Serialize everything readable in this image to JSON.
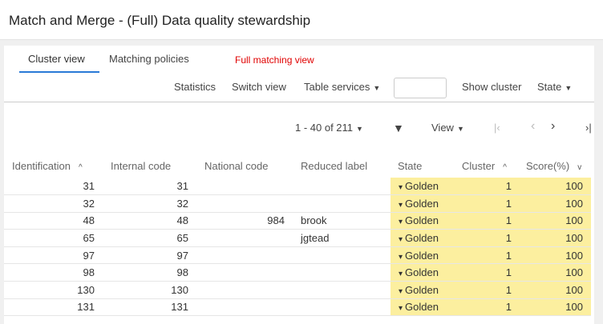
{
  "title": "Match and Merge - (Full) Data quality stewardship",
  "tabs": [
    {
      "label": "Cluster view",
      "active": true
    },
    {
      "label": "Matching policies",
      "active": false
    }
  ],
  "annotation": "Full matching view",
  "toolbar": {
    "statistics": "Statistics",
    "switch_view": "Switch view",
    "table_services": "Table services",
    "search_value": "",
    "show_cluster": "Show cluster",
    "state": "State"
  },
  "pager": {
    "range": "1 - 40 of 211",
    "view": "View"
  },
  "columns": [
    "Identification",
    "Internal code",
    "National code",
    "Reduced label",
    "State",
    "Cluster",
    "Score(%)"
  ],
  "rows": [
    [
      "31",
      "31",
      "",
      "",
      "Golden",
      "1",
      "100"
    ],
    [
      "32",
      "32",
      "",
      "",
      "Golden",
      "1",
      "100"
    ],
    [
      "48",
      "48",
      "984",
      "brook",
      "Golden",
      "1",
      "100"
    ],
    [
      "65",
      "65",
      "",
      "jgtead",
      "Golden",
      "1",
      "100"
    ],
    [
      "97",
      "97",
      "",
      "",
      "Golden",
      "1",
      "100"
    ],
    [
      "98",
      "98",
      "",
      "",
      "Golden",
      "1",
      "100"
    ],
    [
      "130",
      "130",
      "",
      "",
      "Golden",
      "1",
      "100"
    ],
    [
      "131",
      "131",
      "",
      "",
      "Golden",
      "1",
      "100"
    ]
  ],
  "colors": {
    "accent": "#2a7ad6",
    "golden_highlight": "#fcef9f",
    "annotation": "#e00000"
  }
}
